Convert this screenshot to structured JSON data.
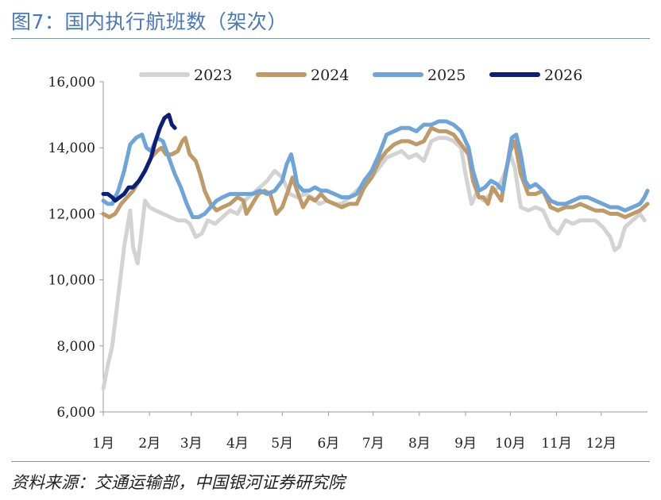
{
  "page": {
    "title": "图7：国内执行航班数（架次）",
    "source": "资料来源：交通运输部，中国银河证券研究院"
  },
  "chart_data": {
    "type": "line",
    "title": "国内执行航班数（架次）",
    "xlabel": "",
    "ylabel": "",
    "ylim": [
      6000,
      16000
    ],
    "yticks": [
      6000,
      8000,
      10000,
      12000,
      14000,
      16000
    ],
    "ytick_labels": [
      "6,000",
      "8,000",
      "10,000",
      "12,000",
      "14,000",
      "16,000"
    ],
    "xlim": [
      0,
      365
    ],
    "xticks": [
      0,
      31,
      59,
      90,
      120,
      151,
      181,
      212,
      243,
      273,
      304,
      334
    ],
    "xtick_labels": [
      "1月",
      "2月",
      "3月",
      "4月",
      "5月",
      "6月",
      "7月",
      "8月",
      "9月",
      "10月",
      "11月",
      "12月"
    ],
    "legend": [
      "2023",
      "2024",
      "2025",
      "2026"
    ],
    "legend_position": "top",
    "series": [
      {
        "name": "2023",
        "color": "#d3d3d3",
        "points": [
          [
            0,
            6700
          ],
          [
            3,
            7400
          ],
          [
            6,
            8000
          ],
          [
            10,
            9500
          ],
          [
            14,
            11000
          ],
          [
            18,
            12100
          ],
          [
            20,
            11000
          ],
          [
            23,
            10500
          ],
          [
            25,
            11200
          ],
          [
            28,
            12400
          ],
          [
            31,
            12200
          ],
          [
            35,
            12100
          ],
          [
            40,
            12000
          ],
          [
            45,
            11900
          ],
          [
            50,
            11800
          ],
          [
            55,
            11800
          ],
          [
            58,
            11700
          ],
          [
            62,
            11300
          ],
          [
            66,
            11400
          ],
          [
            70,
            11800
          ],
          [
            75,
            11700
          ],
          [
            80,
            11900
          ],
          [
            85,
            12100
          ],
          [
            90,
            12000
          ],
          [
            95,
            12400
          ],
          [
            100,
            12600
          ],
          [
            105,
            12800
          ],
          [
            110,
            13000
          ],
          [
            115,
            13300
          ],
          [
            120,
            13100
          ],
          [
            125,
            12600
          ],
          [
            130,
            12500
          ],
          [
            135,
            12600
          ],
          [
            140,
            12500
          ],
          [
            145,
            12300
          ],
          [
            150,
            12400
          ],
          [
            155,
            12300
          ],
          [
            160,
            12300
          ],
          [
            165,
            12500
          ],
          [
            170,
            12700
          ],
          [
            175,
            12900
          ],
          [
            180,
            13100
          ],
          [
            185,
            13400
          ],
          [
            190,
            13700
          ],
          [
            195,
            13800
          ],
          [
            200,
            13900
          ],
          [
            205,
            13700
          ],
          [
            210,
            13800
          ],
          [
            215,
            13600
          ],
          [
            220,
            14200
          ],
          [
            225,
            14300
          ],
          [
            230,
            14300
          ],
          [
            235,
            14200
          ],
          [
            240,
            14000
          ],
          [
            243,
            13200
          ],
          [
            247,
            12300
          ],
          [
            250,
            12600
          ],
          [
            255,
            12400
          ],
          [
            260,
            12600
          ],
          [
            265,
            12800
          ],
          [
            270,
            13300
          ],
          [
            273,
            13800
          ],
          [
            276,
            13400
          ],
          [
            280,
            12200
          ],
          [
            285,
            12100
          ],
          [
            290,
            12200
          ],
          [
            295,
            12100
          ],
          [
            300,
            11600
          ],
          [
            305,
            11400
          ],
          [
            310,
            11800
          ],
          [
            315,
            11700
          ],
          [
            320,
            11800
          ],
          [
            325,
            11800
          ],
          [
            330,
            11800
          ],
          [
            335,
            11600
          ],
          [
            340,
            11300
          ],
          [
            343,
            10900
          ],
          [
            346,
            11000
          ],
          [
            350,
            11600
          ],
          [
            355,
            11800
          ],
          [
            360,
            12000
          ],
          [
            363,
            11800
          ]
        ]
      },
      {
        "name": "2024",
        "color": "#bf9a66",
        "points": [
          [
            0,
            12000
          ],
          [
            4,
            11900
          ],
          [
            8,
            12000
          ],
          [
            12,
            12300
          ],
          [
            16,
            12500
          ],
          [
            20,
            12700
          ],
          [
            24,
            13000
          ],
          [
            28,
            13300
          ],
          [
            32,
            13700
          ],
          [
            36,
            13900
          ],
          [
            39,
            14000
          ],
          [
            42,
            13800
          ],
          [
            46,
            13800
          ],
          [
            50,
            13900
          ],
          [
            53,
            14200
          ],
          [
            55,
            14300
          ],
          [
            58,
            13800
          ],
          [
            62,
            13600
          ],
          [
            65,
            13200
          ],
          [
            68,
            12700
          ],
          [
            72,
            12300
          ],
          [
            76,
            12100
          ],
          [
            80,
            12200
          ],
          [
            85,
            12300
          ],
          [
            90,
            12500
          ],
          [
            94,
            12400
          ],
          [
            96,
            12000
          ],
          [
            100,
            12300
          ],
          [
            104,
            12600
          ],
          [
            108,
            12700
          ],
          [
            112,
            12600
          ],
          [
            116,
            12000
          ],
          [
            120,
            12200
          ],
          [
            124,
            12700
          ],
          [
            127,
            13100
          ],
          [
            130,
            12700
          ],
          [
            134,
            12200
          ],
          [
            138,
            12500
          ],
          [
            142,
            12400
          ],
          [
            146,
            12600
          ],
          [
            150,
            12400
          ],
          [
            155,
            12300
          ],
          [
            160,
            12200
          ],
          [
            165,
            12300
          ],
          [
            170,
            12300
          ],
          [
            175,
            12800
          ],
          [
            180,
            13100
          ],
          [
            185,
            13600
          ],
          [
            190,
            13900
          ],
          [
            195,
            14100
          ],
          [
            200,
            14200
          ],
          [
            205,
            14200
          ],
          [
            210,
            14100
          ],
          [
            215,
            14200
          ],
          [
            220,
            14600
          ],
          [
            225,
            14500
          ],
          [
            230,
            14500
          ],
          [
            235,
            14400
          ],
          [
            240,
            14100
          ],
          [
            245,
            13800
          ],
          [
            248,
            13000
          ],
          [
            252,
            12500
          ],
          [
            255,
            12500
          ],
          [
            258,
            12300
          ],
          [
            261,
            12800
          ],
          [
            264,
            12600
          ],
          [
            267,
            12400
          ],
          [
            270,
            13300
          ],
          [
            273,
            13900
          ],
          [
            276,
            14200
          ],
          [
            280,
            13200
          ],
          [
            285,
            12600
          ],
          [
            290,
            12600
          ],
          [
            295,
            12700
          ],
          [
            300,
            12200
          ],
          [
            305,
            12100
          ],
          [
            310,
            12200
          ],
          [
            315,
            12200
          ],
          [
            320,
            12300
          ],
          [
            325,
            12200
          ],
          [
            330,
            12100
          ],
          [
            335,
            12100
          ],
          [
            340,
            12000
          ],
          [
            345,
            12000
          ],
          [
            350,
            11900
          ],
          [
            355,
            12000
          ],
          [
            360,
            12100
          ],
          [
            365,
            12300
          ]
        ]
      },
      {
        "name": "2025",
        "color": "#6fa4d8",
        "points": [
          [
            0,
            12400
          ],
          [
            3,
            12300
          ],
          [
            6,
            12300
          ],
          [
            10,
            12700
          ],
          [
            14,
            13300
          ],
          [
            18,
            14100
          ],
          [
            22,
            14300
          ],
          [
            26,
            14400
          ],
          [
            29,
            14000
          ],
          [
            32,
            13900
          ],
          [
            36,
            14300
          ],
          [
            40,
            14200
          ],
          [
            44,
            13700
          ],
          [
            48,
            13200
          ],
          [
            52,
            12800
          ],
          [
            56,
            12300
          ],
          [
            60,
            11900
          ],
          [
            64,
            11900
          ],
          [
            68,
            12000
          ],
          [
            72,
            12200
          ],
          [
            76,
            12400
          ],
          [
            80,
            12500
          ],
          [
            85,
            12600
          ],
          [
            90,
            12600
          ],
          [
            95,
            12600
          ],
          [
            100,
            12600
          ],
          [
            105,
            12700
          ],
          [
            110,
            12600
          ],
          [
            115,
            12700
          ],
          [
            120,
            13000
          ],
          [
            123,
            13500
          ],
          [
            126,
            13800
          ],
          [
            128,
            13400
          ],
          [
            130,
            12900
          ],
          [
            134,
            12700
          ],
          [
            138,
            12700
          ],
          [
            142,
            12800
          ],
          [
            146,
            12700
          ],
          [
            150,
            12700
          ],
          [
            155,
            12600
          ],
          [
            160,
            12500
          ],
          [
            165,
            12500
          ],
          [
            170,
            12600
          ],
          [
            175,
            13000
          ],
          [
            180,
            13300
          ],
          [
            185,
            13800
          ],
          [
            190,
            14400
          ],
          [
            195,
            14500
          ],
          [
            200,
            14600
          ],
          [
            205,
            14600
          ],
          [
            210,
            14500
          ],
          [
            215,
            14700
          ],
          [
            220,
            14700
          ],
          [
            225,
            14800
          ],
          [
            230,
            14800
          ],
          [
            235,
            14700
          ],
          [
            240,
            14500
          ],
          [
            245,
            14000
          ],
          [
            248,
            13300
          ],
          [
            252,
            12700
          ],
          [
            256,
            12800
          ],
          [
            260,
            13000
          ],
          [
            264,
            12900
          ],
          [
            268,
            12700
          ],
          [
            271,
            13500
          ],
          [
            274,
            14300
          ],
          [
            277,
            14400
          ],
          [
            280,
            13800
          ],
          [
            283,
            13000
          ],
          [
            286,
            12800
          ],
          [
            290,
            12900
          ],
          [
            295,
            12700
          ],
          [
            300,
            12400
          ],
          [
            305,
            12300
          ],
          [
            310,
            12300
          ],
          [
            315,
            12400
          ],
          [
            320,
            12500
          ],
          [
            325,
            12500
          ],
          [
            330,
            12400
          ],
          [
            335,
            12300
          ],
          [
            340,
            12200
          ],
          [
            345,
            12200
          ],
          [
            350,
            12100
          ],
          [
            355,
            12200
          ],
          [
            360,
            12300
          ],
          [
            363,
            12500
          ],
          [
            365,
            12700
          ]
        ]
      },
      {
        "name": "2026",
        "color": "#0b1f7a",
        "points": [
          [
            0,
            12600
          ],
          [
            3,
            12600
          ],
          [
            6,
            12500
          ],
          [
            8,
            12400
          ],
          [
            11,
            12500
          ],
          [
            14,
            12600
          ],
          [
            17,
            12800
          ],
          [
            20,
            12800
          ],
          [
            24,
            13000
          ],
          [
            28,
            13300
          ],
          [
            32,
            13700
          ],
          [
            35,
            14200
          ],
          [
            38,
            14600
          ],
          [
            41,
            14900
          ],
          [
            44,
            15000
          ],
          [
            46,
            14700
          ],
          [
            48,
            14600
          ]
        ]
      }
    ]
  }
}
